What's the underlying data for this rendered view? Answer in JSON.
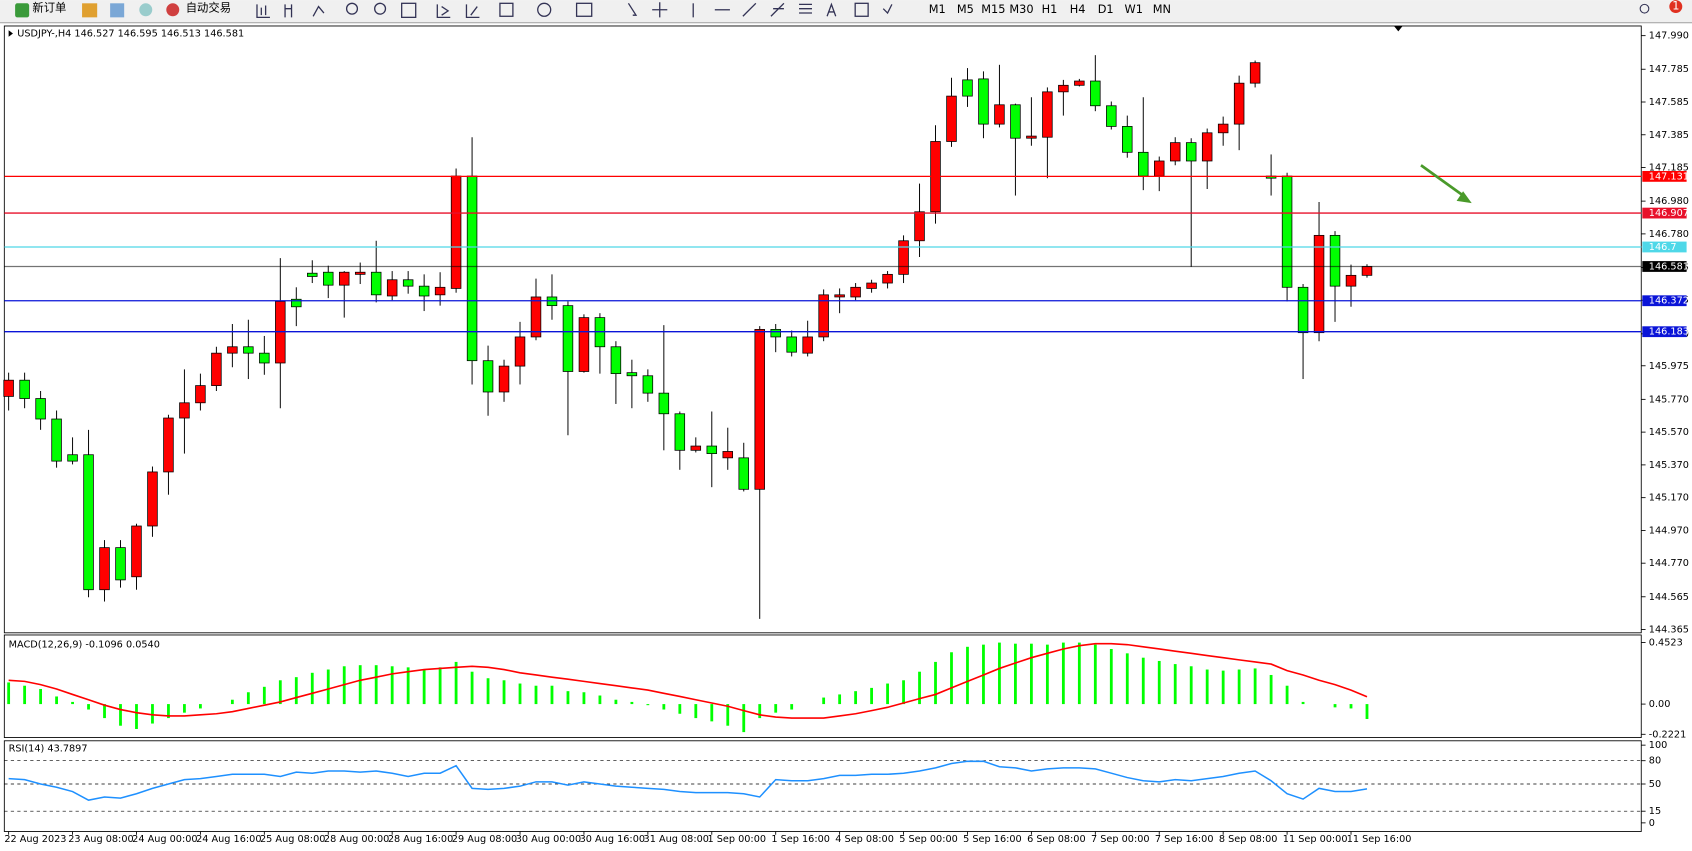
{
  "toolbar": {
    "new_order": "新订单",
    "auto_trade": "自动交易",
    "timeframes": [
      "M1",
      "M5",
      "M15",
      "M30",
      "H1",
      "H4",
      "D1",
      "W1",
      "MN"
    ],
    "badge": "1"
  },
  "chart_data": [
    {
      "type": "candlestick",
      "title": "USDJPY-,H4 146.527 146.595 146.513 146.581",
      "categories": [
        "22 Aug 2023",
        null,
        null,
        null,
        "23 Aug 08:00",
        null,
        null,
        null,
        "24 Aug 00:00",
        null,
        null,
        null,
        "24 Aug 16:00",
        null,
        null,
        null,
        "25 Aug 08:00",
        null,
        null,
        null,
        "28 Aug 00:00",
        null,
        null,
        null,
        "28 Aug 16:00",
        null,
        null,
        null,
        "29 Aug 08:00",
        null,
        null,
        null,
        "30 Aug 00:00",
        null,
        null,
        null,
        "30 Aug 16:00",
        null,
        null,
        null,
        "31 Aug 08:00",
        null,
        null,
        null,
        "1 Sep 00:00",
        null,
        null,
        null,
        "1 Sep 16:00",
        null,
        null,
        null,
        "4 Sep 08:00",
        null,
        null,
        null,
        "5 Sep 00:00",
        null,
        null,
        null,
        "5 Sep 16:00",
        null,
        null,
        null,
        "6 Sep 08:00",
        null,
        null,
        null,
        "7 Sep 00:00",
        null,
        null,
        null,
        "7 Sep 16:00",
        null,
        null,
        null,
        "8 Sep 08:00",
        null,
        null,
        null,
        "11 Sep 00:00",
        null,
        null,
        null,
        "11 Sep 16:00",
        null
      ],
      "open": [
        145.788,
        145.887,
        145.775,
        145.65,
        145.432,
        145.432,
        144.608,
        144.865,
        144.687,
        144.997,
        145.327,
        145.656,
        145.749,
        145.854,
        146.052,
        146.091,
        146.052,
        145.992,
        146.381,
        146.54,
        146.546,
        146.467,
        146.533,
        146.546,
        146.401,
        146.5,
        146.461,
        146.408,
        146.447,
        147.133,
        146.006,
        145.815,
        145.973,
        146.151,
        146.395,
        146.342,
        145.94,
        146.269,
        146.091,
        145.933,
        145.914,
        145.808,
        145.682,
        145.459,
        145.485,
        145.413,
        145.413,
        145.221,
        146.197,
        146.151,
        146.052,
        146.151,
        146.395,
        146.395,
        146.447,
        146.48,
        146.533,
        146.738,
        146.915,
        147.344,
        147.72,
        147.726,
        147.45,
        147.568,
        147.364,
        147.37,
        147.647,
        147.687,
        147.713,
        147.562,
        147.436,
        147.278,
        147.133,
        147.225,
        147.337,
        147.225,
        147.397,
        147.45,
        147.7,
        147.133,
        147.133,
        146.454,
        146.177,
        146.771,
        146.461,
        146.527
      ],
      "high": [
        145.933,
        145.933,
        145.821,
        145.702,
        145.538,
        145.584,
        144.911,
        144.911,
        145.011,
        145.36,
        145.676,
        145.953,
        145.927,
        146.091,
        146.23,
        146.256,
        146.157,
        146.632,
        146.454,
        146.619,
        146.586,
        146.553,
        146.605,
        146.738,
        146.553,
        146.553,
        146.533,
        146.546,
        147.179,
        147.37,
        146.098,
        146.012,
        146.243,
        146.507,
        146.533,
        146.368,
        146.289,
        146.296,
        146.125,
        146.012,
        145.953,
        146.223,
        145.696,
        145.538,
        145.696,
        145.597,
        145.505,
        146.217,
        146.23,
        146.19,
        146.25,
        146.441,
        146.447,
        146.48,
        146.5,
        146.553,
        146.771,
        147.087,
        147.443,
        147.733,
        147.792,
        147.772,
        147.812,
        147.575,
        147.614,
        147.674,
        147.72,
        147.726,
        147.871,
        147.588,
        147.502,
        147.614,
        147.252,
        147.37,
        147.364,
        147.423,
        147.496,
        147.746,
        147.838,
        147.265,
        147.153,
        146.474,
        146.975,
        146.797,
        146.592,
        146.595
      ],
      "low": [
        145.702,
        145.716,
        145.584,
        145.353,
        145.373,
        144.562,
        144.536,
        144.621,
        144.608,
        144.931,
        145.188,
        145.439,
        145.702,
        145.821,
        145.966,
        145.894,
        145.92,
        145.716,
        146.217,
        146.48,
        146.388,
        146.269,
        146.474,
        146.362,
        146.375,
        146.415,
        146.309,
        146.342,
        146.421,
        145.861,
        145.67,
        145.755,
        145.861,
        146.131,
        146.256,
        145.551,
        145.933,
        145.927,
        145.742,
        145.716,
        145.755,
        145.459,
        145.34,
        145.446,
        145.234,
        145.34,
        145.208,
        144.43,
        146.058,
        146.032,
        146.032,
        146.125,
        146.296,
        146.375,
        146.421,
        146.447,
        146.48,
        146.639,
        146.843,
        147.311,
        147.555,
        147.364,
        147.43,
        147.014,
        147.318,
        147.12,
        147.502,
        147.68,
        147.529,
        147.417,
        147.245,
        147.047,
        147.041,
        147.199,
        146.579,
        147.054,
        147.318,
        147.291,
        147.674,
        147.014,
        146.368,
        145.894,
        146.125,
        146.243,
        146.335,
        146.513
      ],
      "close": [
        145.887,
        145.775,
        145.65,
        145.393,
        145.393,
        144.608,
        144.865,
        144.668,
        144.997,
        145.327,
        145.656,
        145.749,
        145.854,
        146.052,
        146.091,
        146.052,
        145.992,
        146.368,
        146.335,
        146.52,
        146.467,
        146.546,
        146.546,
        146.408,
        146.5,
        146.461,
        146.401,
        146.454,
        147.133,
        146.006,
        145.815,
        145.973,
        146.151,
        146.395,
        146.342,
        145.94,
        146.269,
        146.091,
        145.927,
        145.914,
        145.808,
        145.682,
        145.459,
        145.485,
        145.439,
        145.452,
        145.221,
        146.197,
        146.151,
        146.058,
        146.151,
        146.408,
        146.408,
        146.454,
        146.48,
        146.533,
        146.738,
        146.915,
        147.344,
        147.621,
        147.621,
        147.45,
        147.568,
        147.364,
        147.377,
        147.647,
        147.687,
        147.713,
        147.562,
        147.436,
        147.278,
        147.133,
        147.225,
        147.337,
        147.225,
        147.397,
        147.45,
        147.7,
        147.825,
        147.12,
        146.454,
        146.177,
        146.771,
        146.461,
        146.527,
        146.581
      ],
      "up_color": "#ff0000",
      "down_color": "#00ff00",
      "ylim": [
        144.345,
        148.049
      ],
      "yticks": [
        {
          "value": 147.99,
          "label": "147.990"
        },
        147.785,
        147.585,
        147.385,
        147.185,
        {
          "value": 146.98,
          "label": "146.980"
        },
        {
          "value": 146.78,
          "label": "146.780"
        },
        146.575,
        146.375,
        {
          "value": 146.17,
          "label": "146.170"
        },
        145.975,
        {
          "value": 145.77,
          "label": "145.770"
        },
        {
          "value": 145.57,
          "label": "145.570"
        },
        {
          "value": 145.37,
          "label": "145.370"
        },
        {
          "value": 145.17,
          "label": "145.170"
        },
        {
          "value": 144.97,
          "label": "144.970"
        },
        {
          "value": 144.77,
          "label": "144.770"
        },
        144.565,
        144.365
      ],
      "levels": [
        {
          "value": 147.131,
          "color": "#ff0000"
        },
        {
          "value": 146.907,
          "color": "#e8102a"
        },
        {
          "value": 146.7,
          "color": "#4fd8e8"
        },
        {
          "value": 146.581,
          "color": "#000000"
        },
        {
          "value": 146.372,
          "color": "#0a14d8"
        },
        {
          "value": 146.183,
          "color": "#0a14d8"
        }
      ],
      "grid": false
    },
    {
      "type": "macd",
      "title": "MACD(12,26,9) -0.1096 0.0540",
      "histogram": {
        "color": "#00ff00",
        "values": [
          0.159,
          0.135,
          0.111,
          0.056,
          0.016,
          -0.04,
          -0.103,
          -0.159,
          -0.183,
          -0.143,
          -0.103,
          -0.063,
          -0.032,
          0,
          0.032,
          0.087,
          0.127,
          0.175,
          0.198,
          0.23,
          0.254,
          0.278,
          0.286,
          0.286,
          0.278,
          0.27,
          0.254,
          0.27,
          0.31,
          0.238,
          0.19,
          0.175,
          0.151,
          0.135,
          0.135,
          0.095,
          0.087,
          0.063,
          0.032,
          0.016,
          -0.008,
          -0.04,
          -0.071,
          -0.103,
          -0.127,
          -0.159,
          -0.206,
          -0.103,
          -0.063,
          -0.04,
          0,
          0.048,
          0.071,
          0.095,
          0.119,
          0.151,
          0.175,
          0.238,
          0.31,
          0.381,
          0.421,
          0.437,
          0.452,
          0.444,
          0.444,
          0.437,
          0.452,
          0.452,
          0.437,
          0.405,
          0.373,
          0.341,
          0.317,
          0.294,
          0.278,
          0.254,
          0.246,
          0.254,
          0.262,
          0.214,
          0.135,
          0.016,
          0,
          -0.024,
          -0.032,
          -0.1096
        ]
      },
      "signal": {
        "color": "#ff0000",
        "values": [
          0.175,
          0.167,
          0.143,
          0.111,
          0.071,
          0.032,
          -0.008,
          -0.04,
          -0.063,
          -0.079,
          -0.087,
          -0.087,
          -0.079,
          -0.071,
          -0.056,
          -0.032,
          -0.008,
          0.016,
          0.048,
          0.079,
          0.111,
          0.143,
          0.175,
          0.198,
          0.222,
          0.238,
          0.254,
          0.262,
          0.27,
          0.278,
          0.27,
          0.254,
          0.23,
          0.214,
          0.198,
          0.183,
          0.167,
          0.151,
          0.135,
          0.119,
          0.103,
          0.079,
          0.056,
          0.032,
          0.008,
          -0.016,
          -0.048,
          -0.079,
          -0.095,
          -0.103,
          -0.103,
          -0.103,
          -0.087,
          -0.071,
          -0.048,
          -0.024,
          0.008,
          0.04,
          0.071,
          0.119,
          0.167,
          0.214,
          0.262,
          0.302,
          0.341,
          0.373,
          0.405,
          0.429,
          0.444,
          0.444,
          0.437,
          0.421,
          0.405,
          0.389,
          0.373,
          0.357,
          0.341,
          0.325,
          0.31,
          0.294,
          0.246,
          0.214,
          0.175,
          0.143,
          0.103,
          0.054
        ]
      },
      "ylim": [
        -0.246,
        0.508
      ],
      "yticks": [
        0.4523,
        {
          "value": 0,
          "label": "0.00"
        },
        -0.2221
      ]
    },
    {
      "type": "line",
      "title": "RSI(14) 43.7897",
      "color": "#1e90ff",
      "values": [
        56.9,
        55.6,
        50.0,
        45.8,
        40.3,
        29.2,
        33.3,
        31.9,
        37.5,
        44.4,
        50.0,
        55.6,
        56.9,
        59.7,
        62.5,
        62.5,
        62.5,
        59.7,
        65.3,
        63.9,
        66.7,
        66.7,
        65.3,
        66.7,
        63.9,
        59.7,
        63.9,
        63.9,
        73.6,
        44.4,
        43.1,
        44.4,
        47.2,
        52.8,
        52.8,
        48.6,
        52.8,
        50.0,
        47.2,
        45.8,
        44.4,
        43.1,
        40.3,
        38.9,
        38.9,
        38.9,
        37.5,
        33.3,
        55.6,
        54.2,
        54.2,
        56.9,
        61.1,
        61.1,
        62.5,
        62.5,
        63.9,
        66.7,
        70.8,
        76.4,
        79.2,
        79.2,
        72.2,
        70.8,
        66.7,
        69.4,
        70.8,
        70.8,
        69.4,
        63.9,
        58.3,
        54.2,
        52.8,
        55.6,
        54.2,
        56.9,
        59.7,
        63.9,
        66.7,
        54.2,
        37.5,
        30.6,
        44.4,
        40.3,
        40.3,
        43.7897
      ],
      "ylim": [
        -11.1,
        105.6
      ],
      "yticks": [
        0,
        15,
        50,
        80,
        100
      ]
    }
  ]
}
